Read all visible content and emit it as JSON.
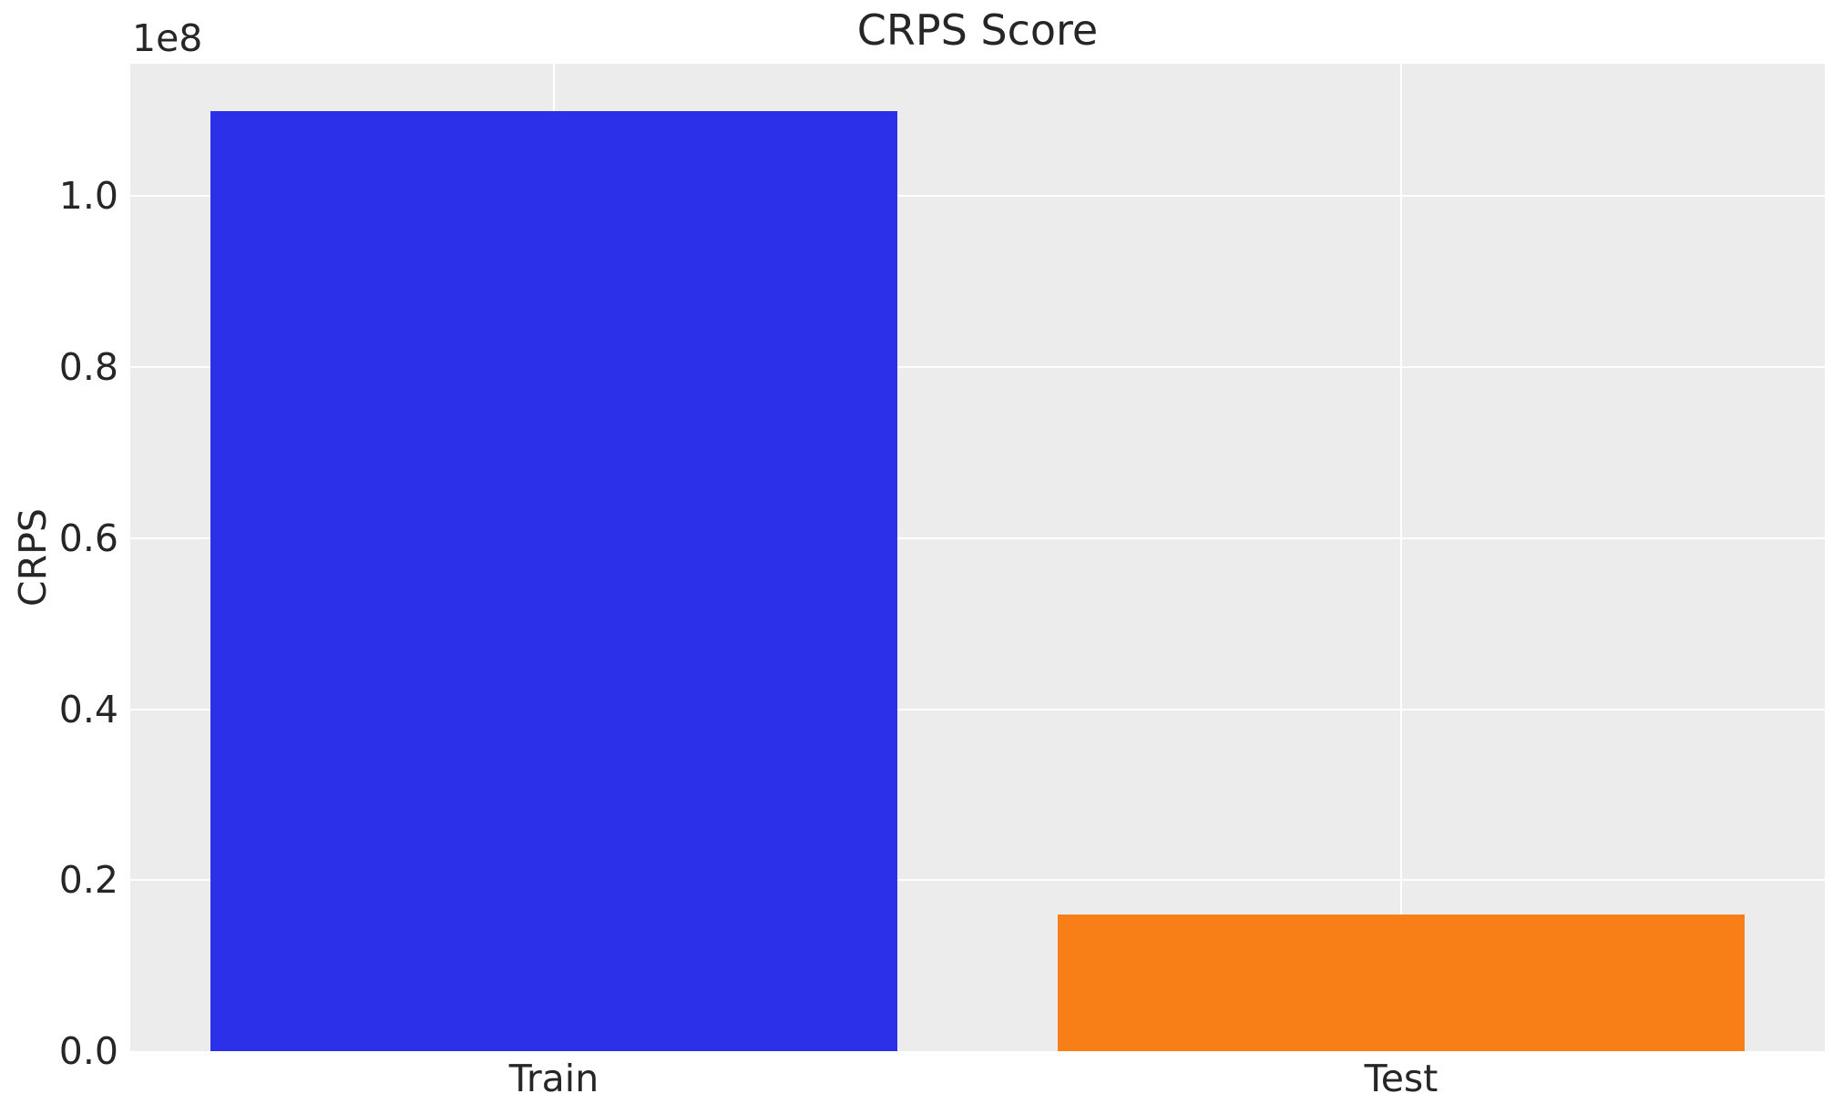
{
  "chart_data": {
    "type": "bar",
    "title": "CRPS Score",
    "xlabel": "",
    "ylabel": "CRPS",
    "offset_text": "1e8",
    "categories": [
      "Train",
      "Test"
    ],
    "values": [
      110000000,
      16000000
    ],
    "bar_colors": [
      "#2c30e8",
      "#f87e18"
    ],
    "ylim": [
      0,
      115500000
    ],
    "yticks": [
      0,
      20000000,
      40000000,
      60000000,
      80000000,
      100000000
    ],
    "ytick_labels": [
      "0.0",
      "0.2",
      "0.4",
      "0.6",
      "0.8",
      "1.0"
    ],
    "grid": true,
    "legend": null,
    "style": {
      "axes_background": "#ececec",
      "grid_color": "#ffffff",
      "text_color": "#262626",
      "figure_background": "#ffffff"
    }
  }
}
